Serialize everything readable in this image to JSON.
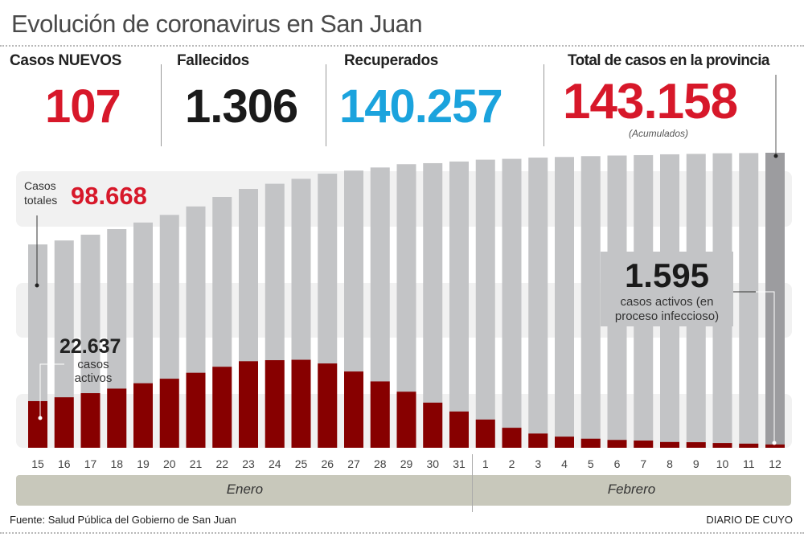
{
  "title": "Evolución de coronavirus en San Juan",
  "stats": [
    {
      "label": "Casos NUEVOS",
      "value": "107",
      "color": "#d7182a"
    },
    {
      "label": "Fallecidos",
      "value": "1.306",
      "color": "#1a1a1a"
    },
    {
      "label": "Recuperados",
      "value": "140.257",
      "color": "#1ba3dd"
    },
    {
      "label": "Total de casos en la provincia",
      "value": "143.158",
      "color": "#d7182a",
      "note": "(Acumulados)"
    }
  ],
  "annotations": {
    "total_label_1": "Casos",
    "total_label_2": "totales",
    "total_value": "98.668",
    "active_start_value": "22.637",
    "active_start_label_1": "casos",
    "active_start_label_2": "activos",
    "active_end_value": "1.595",
    "active_end_label_1": "casos activos (en",
    "active_end_label_2": "proceso infeccioso)"
  },
  "chart_data": {
    "type": "bar",
    "categories": [
      "15",
      "16",
      "17",
      "18",
      "19",
      "20",
      "21",
      "22",
      "23",
      "24",
      "25",
      "26",
      "27",
      "28",
      "29",
      "30",
      "31",
      "1",
      "2",
      "3",
      "4",
      "5",
      "6",
      "7",
      "8",
      "9",
      "10",
      "11",
      "12"
    ],
    "months": [
      {
        "name": "Enero",
        "days": 17
      },
      {
        "name": "Febrero",
        "days": 12
      }
    ],
    "series": [
      {
        "name": "Casos totales",
        "color": "#c3c4c6",
        "highlight_color": "#9c9c9f",
        "values": [
          98668,
          100600,
          103400,
          106100,
          109300,
          113000,
          117100,
          121700,
          125600,
          128100,
          130500,
          133000,
          134500,
          136000,
          137600,
          138100,
          138900,
          139800,
          140200,
          140800,
          141100,
          141500,
          141800,
          142000,
          142400,
          142600,
          142900,
          143000,
          143158
        ]
      },
      {
        "name": "casos activos",
        "color": "#870000",
        "values": [
          22637,
          24500,
          26500,
          28700,
          31300,
          33500,
          36400,
          39300,
          42000,
          42500,
          42700,
          40900,
          37000,
          32200,
          27200,
          21900,
          17600,
          13700,
          9700,
          6900,
          5400,
          4400,
          3800,
          3500,
          2800,
          2700,
          2300,
          2000,
          1595
        ]
      }
    ],
    "ylim": [
      0,
      143158
    ],
    "grid": false
  },
  "footer": {
    "source": "Fuente: Salud Pública del Gobierno de San Juan",
    "brand": "DIARIO DE CUYO"
  }
}
